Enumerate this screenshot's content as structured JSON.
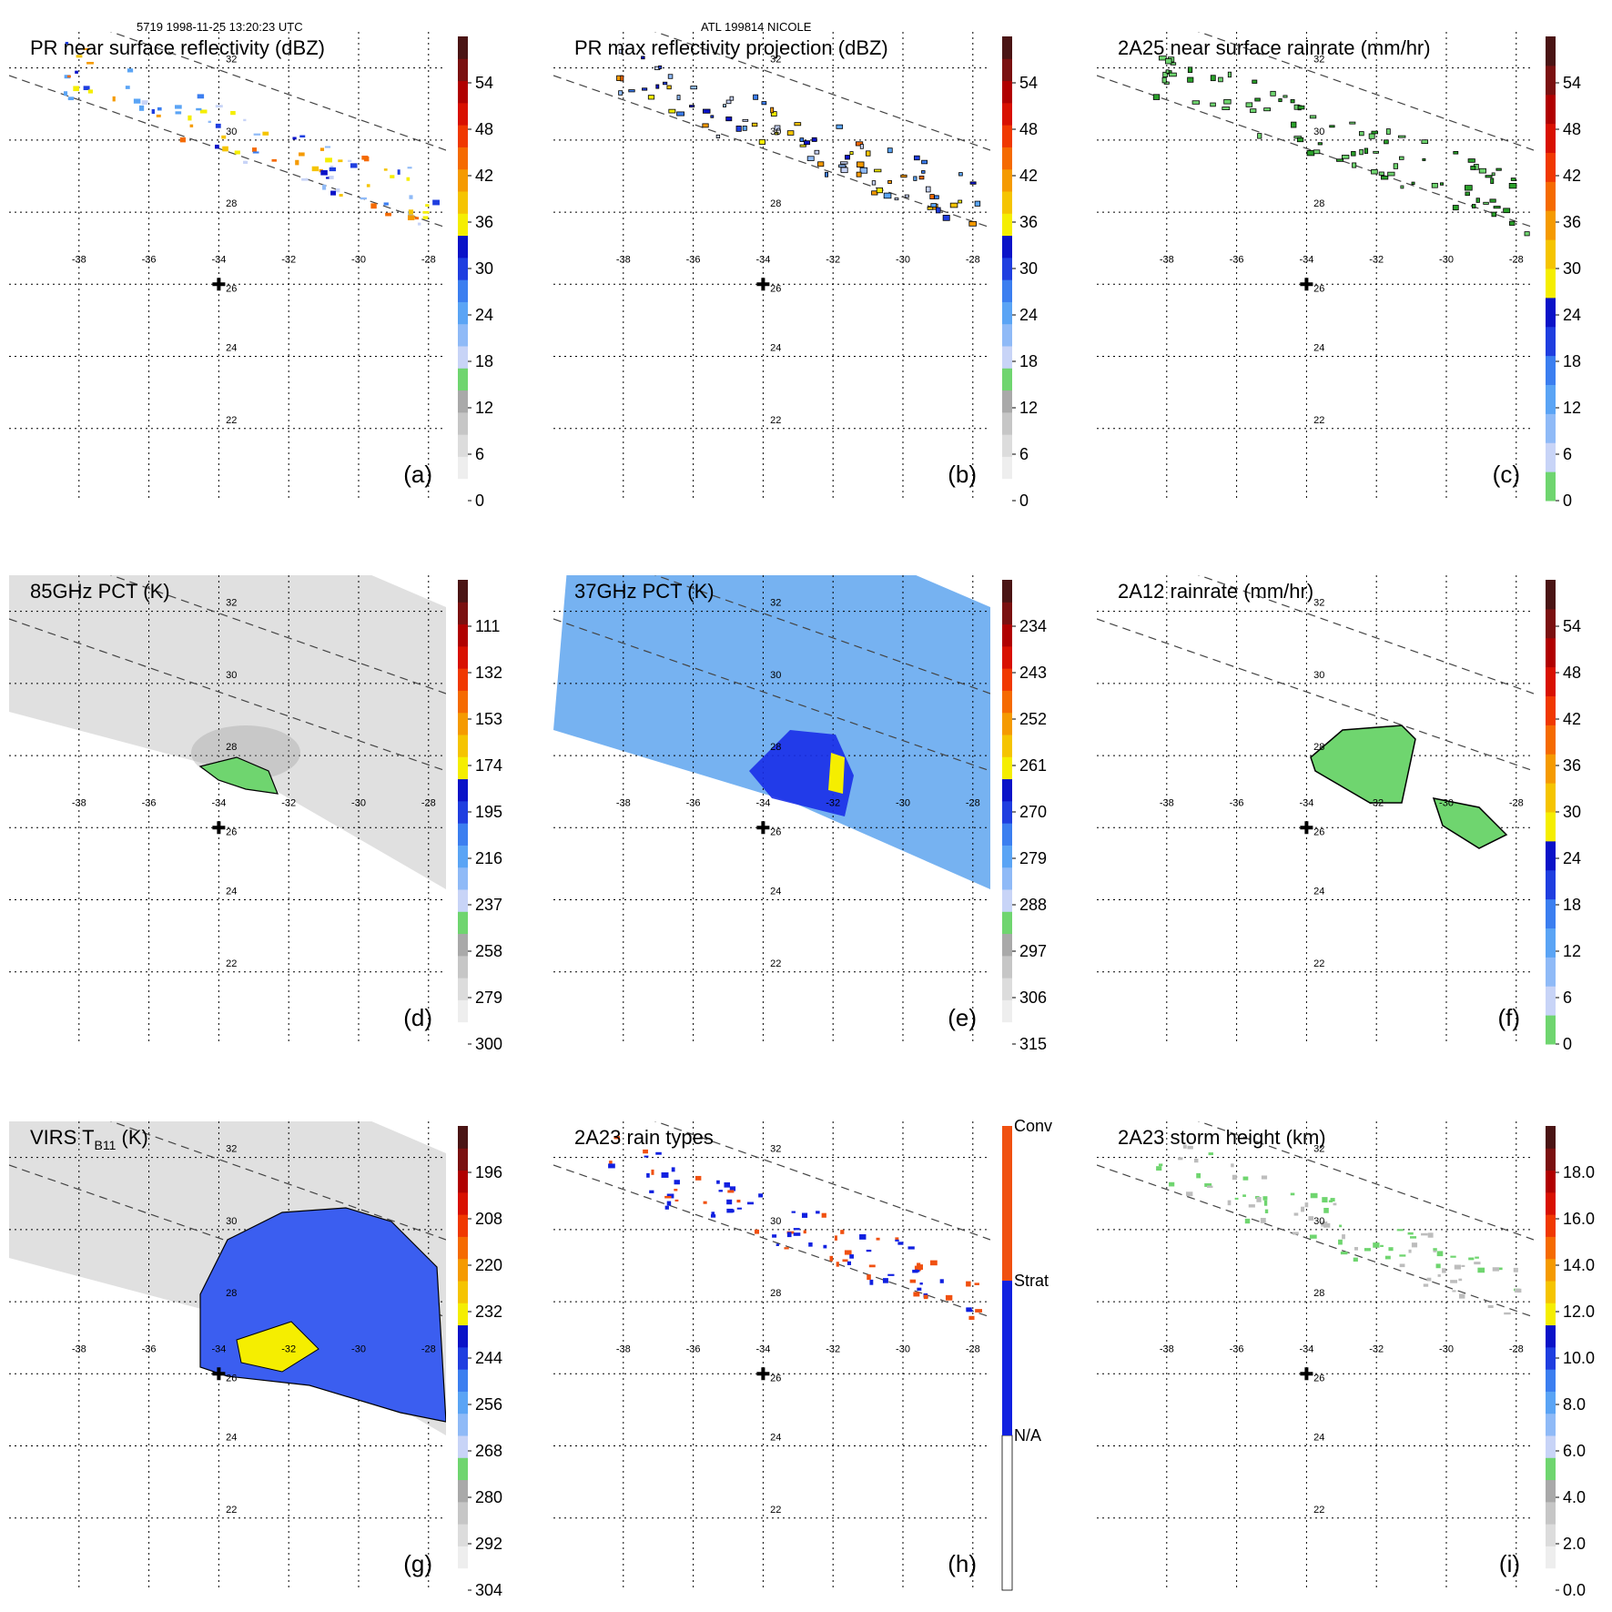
{
  "header": {
    "left": "5719 1998-11-25 13:20:23 UTC",
    "center": "ATL 199814 NICOLE"
  },
  "colors": {
    "grey_ramp": [
      "#ffffff",
      "#f0f0f0",
      "#e0e0e0",
      "#cfcfcf",
      "#bdbdbd",
      "#a8a8a8"
    ],
    "green": "#6fd56f",
    "blue_ramp": [
      "#c8d4f7",
      "#8fbaf7",
      "#5aa4f5",
      "#3b7ef0",
      "#1f3ee0",
      "#0a12c8"
    ],
    "warm_ramp": [
      "#f5ee00",
      "#f5c400",
      "#f59a00",
      "#f56a00",
      "#f03800",
      "#d81000",
      "#b00000",
      "#7a1010",
      "#4a1414"
    ],
    "map_blue_bg": "#67aaf0",
    "map_grey_bg": "#e0e0e0"
  },
  "chart_data": [
    {
      "id": "a",
      "type": "heatmap",
      "title": "PR near surface reflectivity (dBZ)",
      "panel_label": "(a)",
      "colorbar_ticks": [
        "0",
        "6",
        "12",
        "18",
        "24",
        "30",
        "36",
        "42",
        "48",
        "54"
      ],
      "colorbar_scheme": "reflectivity",
      "background": "none",
      "lon_ticks": [
        "-38",
        "-36",
        "-34",
        "-32",
        "-30",
        "-28"
      ],
      "lat_ticks": [
        "32",
        "30",
        "28",
        "26",
        "24",
        "22"
      ],
      "lon_range": [
        -40,
        -27.5
      ],
      "lat_range": [
        20,
        33
      ],
      "center_marker": [
        -34.0,
        26.0
      ],
      "grid": true
    },
    {
      "id": "b",
      "type": "heatmap",
      "title": "PR max reflectivity projection (dBZ)",
      "panel_label": "(b)",
      "colorbar_ticks": [
        "0",
        "6",
        "12",
        "18",
        "24",
        "30",
        "36",
        "42",
        "48",
        "54"
      ],
      "colorbar_scheme": "reflectivity",
      "background": "none",
      "lon_ticks": [
        "-38",
        "-36",
        "-34",
        "-32",
        "-30",
        "-28"
      ],
      "lat_ticks": [
        "32",
        "30",
        "28",
        "26",
        "24",
        "22"
      ],
      "lon_range": [
        -40,
        -27.5
      ],
      "lat_range": [
        20,
        33
      ],
      "center_marker": [
        -34.0,
        26.0
      ],
      "grid": true
    },
    {
      "id": "c",
      "type": "heatmap",
      "title": "2A25 near surface rainrate (mm/hr)",
      "panel_label": "(c)",
      "colorbar_ticks": [
        "0",
        "6",
        "12",
        "18",
        "24",
        "30",
        "36",
        "42",
        "48",
        "54"
      ],
      "colorbar_scheme": "rainrate",
      "background": "none",
      "lon_ticks": [
        "-38",
        "-36",
        "-34",
        "-32",
        "-30",
        "-28"
      ],
      "lat_ticks": [
        "32",
        "30",
        "28",
        "26",
        "24",
        "22"
      ],
      "lon_range": [
        -40,
        -27.5
      ],
      "lat_range": [
        20,
        33
      ],
      "center_marker": [
        -34.0,
        26.0
      ],
      "grid": true
    },
    {
      "id": "d",
      "type": "heatmap",
      "title": "85GHz PCT (K)",
      "panel_label": "(d)",
      "colorbar_ticks": [
        "300",
        "279",
        "258",
        "237",
        "216",
        "195",
        "174",
        "153",
        "132",
        "111"
      ],
      "colorbar_scheme": "reflectivity",
      "background": "grey",
      "lon_ticks": [
        "-38",
        "-36",
        "-34",
        "-32",
        "-30",
        "-28"
      ],
      "lat_ticks": [
        "32",
        "30",
        "28",
        "26",
        "24",
        "22"
      ],
      "lon_range": [
        -40,
        -27.5
      ],
      "lat_range": [
        20,
        33
      ],
      "center_marker": [
        -34.0,
        26.0
      ],
      "grid": true
    },
    {
      "id": "e",
      "type": "heatmap",
      "title": "37GHz PCT (K)",
      "panel_label": "(e)",
      "colorbar_ticks": [
        "315",
        "306",
        "297",
        "288",
        "279",
        "270",
        "261",
        "252",
        "243",
        "234"
      ],
      "colorbar_scheme": "reflectivity",
      "background": "blue",
      "lon_ticks": [
        "-38",
        "-36",
        "-34",
        "-32",
        "-30",
        "-28"
      ],
      "lat_ticks": [
        "32",
        "30",
        "28",
        "26",
        "24",
        "22"
      ],
      "lon_range": [
        -40,
        -27.5
      ],
      "lat_range": [
        20,
        33
      ],
      "center_marker": [
        -34.0,
        26.0
      ],
      "grid": true
    },
    {
      "id": "f",
      "type": "heatmap",
      "title": "2A12 rainrate (mm/hr)",
      "panel_label": "(f)",
      "colorbar_ticks": [
        "0",
        "6",
        "12",
        "18",
        "24",
        "30",
        "36",
        "42",
        "48",
        "54"
      ],
      "colorbar_scheme": "rainrate",
      "background": "none",
      "lon_ticks": [
        "-38",
        "-36",
        "-34",
        "-32",
        "-30",
        "-28"
      ],
      "lat_ticks": [
        "32",
        "30",
        "28",
        "26",
        "24",
        "22"
      ],
      "lon_range": [
        -40,
        -27.5
      ],
      "lat_range": [
        20,
        33
      ],
      "center_marker": [
        -34.0,
        26.0
      ],
      "grid": true
    },
    {
      "id": "g",
      "type": "heatmap",
      "title": "VIRS T",
      "title_sub": "B11",
      "title_tail": " (K)",
      "panel_label": "(g)",
      "colorbar_ticks": [
        "304",
        "292",
        "280",
        "268",
        "256",
        "244",
        "232",
        "220",
        "208",
        "196"
      ],
      "colorbar_scheme": "reflectivity",
      "background": "grey",
      "lon_ticks": [
        "-38",
        "-36",
        "-34",
        "-32",
        "-30",
        "-28"
      ],
      "lat_ticks": [
        "32",
        "30",
        "28",
        "26",
        "24",
        "22"
      ],
      "lon_range": [
        -40,
        -27.5
      ],
      "lat_range": [
        20,
        33
      ],
      "center_marker": [
        -34.0,
        26.0
      ],
      "grid": true
    },
    {
      "id": "h",
      "type": "heatmap",
      "title": "2A23 rain types",
      "panel_label": "(h)",
      "colorbar_ticks": [
        "N/A",
        "Strat",
        "Conv"
      ],
      "colorbar_scheme": "categorical",
      "background": "none",
      "lon_ticks": [
        "-38",
        "-36",
        "-34",
        "-32",
        "-30",
        "-28"
      ],
      "lat_ticks": [
        "32",
        "30",
        "28",
        "26",
        "24",
        "22"
      ],
      "lon_range": [
        -40,
        -27.5
      ],
      "lat_range": [
        20,
        33
      ],
      "center_marker": [
        -34.0,
        26.0
      ],
      "grid": true
    },
    {
      "id": "i",
      "type": "heatmap",
      "title": "2A23 storm height (km)",
      "panel_label": "(i)",
      "colorbar_ticks": [
        "0.0",
        "2.0",
        "4.0",
        "6.0",
        "8.0",
        "10.0",
        "12.0",
        "14.0",
        "16.0",
        "18.0"
      ],
      "colorbar_scheme": "height",
      "background": "none",
      "lon_ticks": [
        "-38",
        "-36",
        "-34",
        "-32",
        "-30",
        "-28"
      ],
      "lat_ticks": [
        "32",
        "30",
        "28",
        "26",
        "24",
        "22"
      ],
      "lon_range": [
        -40,
        -27.5
      ],
      "lat_range": [
        20,
        33
      ],
      "center_marker": [
        -34.0,
        26.0
      ],
      "grid": true
    }
  ]
}
